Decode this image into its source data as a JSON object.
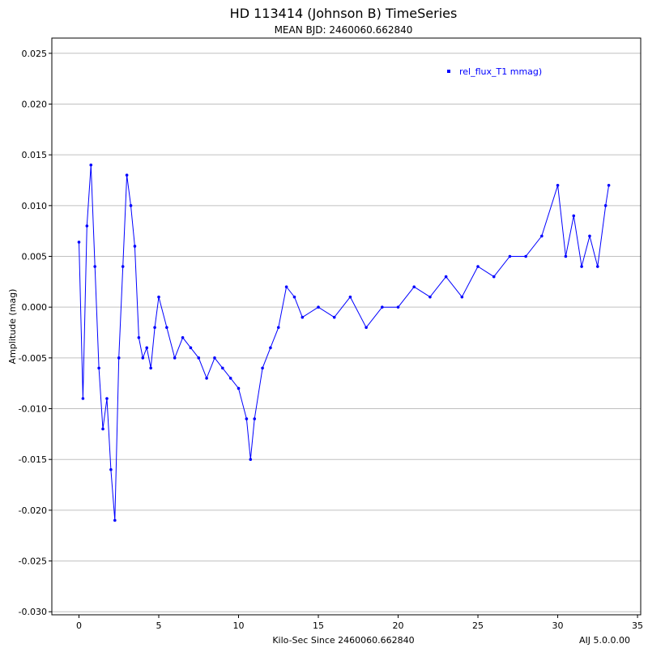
{
  "chart_data": {
    "type": "line",
    "title": "HD 113414 (Johnson B) TimeSeries",
    "subtitle": "MEAN BJD: 2460060.662840",
    "xlabel": "Kilo-Sec Since  2460060.662840",
    "ylabel": "Amplitude (mag)",
    "version_label": "AIJ 5.0.0.00",
    "xlim": [
      -1.7,
      35.2
    ],
    "ylim": [
      -0.0303,
      0.0265
    ],
    "x_ticks": [
      "0",
      "5",
      "10",
      "15",
      "20",
      "25",
      "30",
      "35"
    ],
    "y_ticks": [
      "0.025",
      "0.020",
      "0.015",
      "0.010",
      "0.005",
      "0.000",
      "-0.005",
      "-0.010",
      "-0.015",
      "-0.020",
      "-0.025",
      "-0.030"
    ],
    "grid": true,
    "legend_position": "top-right",
    "series": [
      {
        "name": "rel_flux_T1 mmag)",
        "color": "#0000ff",
        "x": [
          0.0,
          0.25,
          0.5,
          0.75,
          1.0,
          1.25,
          1.5,
          1.75,
          2.0,
          2.25,
          2.5,
          2.75,
          3.0,
          3.25,
          3.5,
          3.75,
          4.0,
          4.25,
          4.5,
          4.75,
          5.0,
          5.5,
          6.0,
          6.5,
          7.0,
          7.5,
          8.0,
          8.5,
          9.0,
          9.5,
          10.0,
          10.5,
          10.75,
          11.0,
          11.5,
          12.0,
          12.5,
          13.0,
          13.5,
          14.0,
          15.0,
          16.0,
          17.0,
          18.0,
          19.0,
          20.0,
          21.0,
          22.0,
          23.0,
          24.0,
          25.0,
          26.0,
          27.0,
          28.0,
          29.0,
          30.0,
          30.5,
          31.0,
          31.5,
          32.0,
          32.5,
          33.0,
          33.2
        ],
        "y": [
          0.0064,
          -0.009,
          0.008,
          0.014,
          0.004,
          -0.006,
          -0.012,
          -0.009,
          -0.016,
          -0.021,
          -0.005,
          0.004,
          0.013,
          0.01,
          0.006,
          -0.003,
          -0.005,
          -0.004,
          -0.006,
          -0.002,
          0.001,
          -0.002,
          -0.005,
          -0.003,
          -0.004,
          -0.005,
          -0.007,
          -0.005,
          -0.006,
          -0.007,
          -0.008,
          -0.011,
          -0.015,
          -0.011,
          -0.006,
          -0.004,
          -0.002,
          0.002,
          0.001,
          -0.001,
          0.0,
          -0.001,
          0.001,
          -0.002,
          0.0,
          0.0,
          0.002,
          0.001,
          0.003,
          0.001,
          0.004,
          0.003,
          0.005,
          0.005,
          0.007,
          0.012,
          0.005,
          0.009,
          0.004,
          0.007,
          0.004,
          0.01,
          0.012
        ]
      }
    ]
  }
}
